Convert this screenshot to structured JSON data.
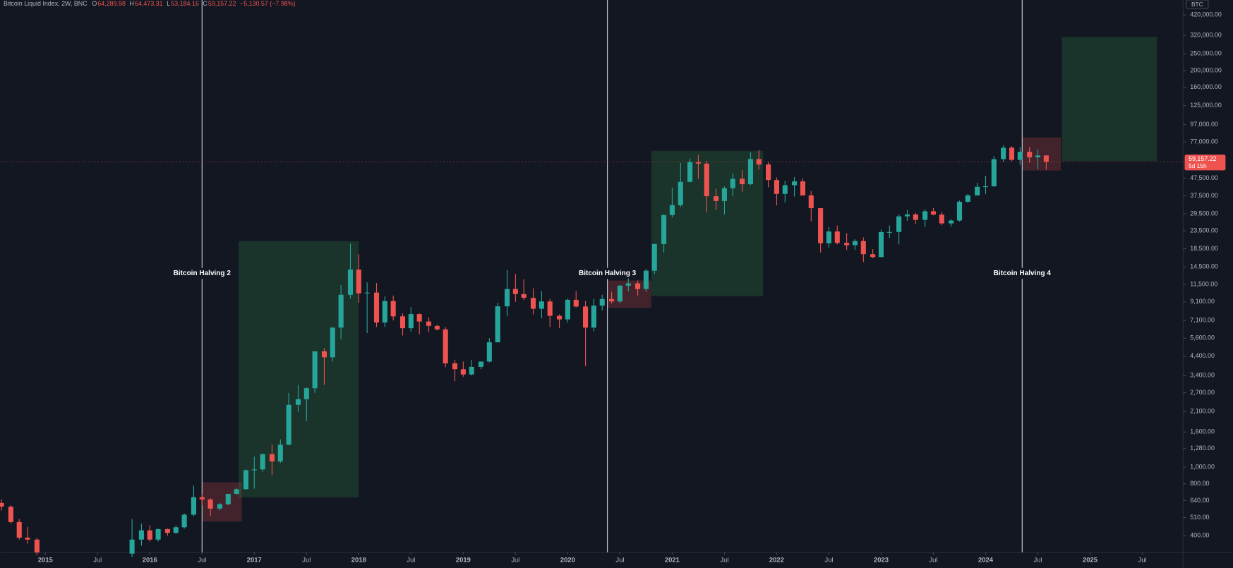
{
  "chart_data": {
    "type": "candlestick",
    "symbol": "BTC",
    "header": {
      "title": "Bitcoin Liquid Index, 2W, BNC",
      "fields": [
        {
          "key": "O",
          "value": "64,289.98"
        },
        {
          "key": "H",
          "value": "64,473.31"
        },
        {
          "key": "L",
          "value": "53,184.16"
        },
        {
          "key": "C",
          "value": "59,157.22"
        }
      ],
      "change": "−5,130.57 (−7.98%)"
    },
    "log_scale": true,
    "grid": false,
    "up_color": "#26a69a",
    "down_color": "#ef5350",
    "xlim": [
      2014.57,
      2025.89
    ],
    "ylim": [
      331,
      513000
    ],
    "xticks": [
      {
        "value": 2015,
        "label": "2015"
      },
      {
        "value": 2015.5,
        "label": "Jul"
      },
      {
        "value": 2016,
        "label": "2016"
      },
      {
        "value": 2016.5,
        "label": "Jul"
      },
      {
        "value": 2017,
        "label": "2017"
      },
      {
        "value": 2017.5,
        "label": "Jul"
      },
      {
        "value": 2018,
        "label": "2018"
      },
      {
        "value": 2018.5,
        "label": "Jul"
      },
      {
        "value": 2019,
        "label": "2019"
      },
      {
        "value": 2019.5,
        "label": "Jul"
      },
      {
        "value": 2020,
        "label": "2020"
      },
      {
        "value": 2020.5,
        "label": "Jul"
      },
      {
        "value": 2021,
        "label": "2021"
      },
      {
        "value": 2021.5,
        "label": "Jul"
      },
      {
        "value": 2022,
        "label": "2022"
      },
      {
        "value": 2022.5,
        "label": "Jul"
      },
      {
        "value": 2023,
        "label": "2023"
      },
      {
        "value": 2023.5,
        "label": "Jul"
      },
      {
        "value": 2024,
        "label": "2024"
      },
      {
        "value": 2024.5,
        "label": "Jul"
      },
      {
        "value": 2025,
        "label": "2025"
      },
      {
        "value": 2025.5,
        "label": "Jul"
      }
    ],
    "yticks": [
      {
        "value": 420000,
        "label": "420,000.00"
      },
      {
        "value": 320000,
        "label": "320,000.00"
      },
      {
        "value": 250000,
        "label": "250,000.00"
      },
      {
        "value": 200000,
        "label": "200,000.00"
      },
      {
        "value": 160000,
        "label": "160,000.00"
      },
      {
        "value": 125000,
        "label": "125,000.00"
      },
      {
        "value": 97000,
        "label": "97,000.00"
      },
      {
        "value": 77000,
        "label": "77,000.00"
      },
      {
        "value": 47500,
        "label": "47,500.00"
      },
      {
        "value": 37500,
        "label": "37,500.00"
      },
      {
        "value": 29500,
        "label": "29,500.00"
      },
      {
        "value": 23500,
        "label": "23,500.00"
      },
      {
        "value": 18500,
        "label": "18,500.00"
      },
      {
        "value": 14500,
        "label": "14,500.00"
      },
      {
        "value": 11500,
        "label": "11,500.00"
      },
      {
        "value": 9100,
        "label": "9,100.00"
      },
      {
        "value": 7100,
        "label": "7,100.00"
      },
      {
        "value": 5600,
        "label": "5,600.00"
      },
      {
        "value": 4400,
        "label": "4,400.00"
      },
      {
        "value": 3400,
        "label": "3,400.00"
      },
      {
        "value": 2700,
        "label": "2,700.00"
      },
      {
        "value": 2100,
        "label": "2,100.00"
      },
      {
        "value": 1600,
        "label": "1,600.00"
      },
      {
        "value": 1280,
        "label": "1,280.00"
      },
      {
        "value": 1000,
        "label": "1,000.00"
      },
      {
        "value": 800,
        "label": "800.00"
      },
      {
        "value": 640,
        "label": "640.00"
      },
      {
        "value": 510,
        "label": "510.00"
      },
      {
        "value": 400,
        "label": "400.00"
      }
    ],
    "last_price": {
      "value": 59157.22,
      "label": "59,157.22",
      "countdown": "5d 15h"
    },
    "x": [
      2014.58,
      2014.67,
      2014.75,
      2014.83,
      2014.92,
      2015.83,
      2015.92,
      2016.0,
      2016.08,
      2016.17,
      2016.25,
      2016.33,
      2016.42,
      2016.5,
      2016.58,
      2016.67,
      2016.75,
      2016.83,
      2016.92,
      2017.0,
      2017.08,
      2017.17,
      2017.25,
      2017.33,
      2017.42,
      2017.5,
      2017.58,
      2017.67,
      2017.75,
      2017.83,
      2017.92,
      2018.0,
      2018.08,
      2018.17,
      2018.25,
      2018.33,
      2018.42,
      2018.5,
      2018.58,
      2018.67,
      2018.75,
      2018.83,
      2018.92,
      2019.0,
      2019.08,
      2019.17,
      2019.25,
      2019.33,
      2019.42,
      2019.5,
      2019.58,
      2019.67,
      2019.75,
      2019.83,
      2019.92,
      2020.0,
      2020.08,
      2020.17,
      2020.25,
      2020.33,
      2020.42,
      2020.5,
      2020.58,
      2020.67,
      2020.75,
      2020.83,
      2020.92,
      2021.0,
      2021.08,
      2021.17,
      2021.25,
      2021.33,
      2021.42,
      2021.5,
      2021.58,
      2021.67,
      2021.75,
      2021.83,
      2021.92,
      2022.0,
      2022.08,
      2022.17,
      2022.25,
      2022.33,
      2022.42,
      2022.5,
      2022.58,
      2022.67,
      2022.75,
      2022.83,
      2022.92,
      2023.0,
      2023.08,
      2023.17,
      2023.25,
      2023.33,
      2023.42,
      2023.5,
      2023.58,
      2023.67,
      2023.75,
      2023.83,
      2023.92,
      2024.0,
      2024.08,
      2024.17,
      2024.25,
      2024.33,
      2024.42,
      2024.5,
      2024.58
    ],
    "open": [
      620,
      590,
      480,
      390,
      380,
      315,
      380,
      430,
      380,
      437,
      416,
      448,
      530,
      670,
      650,
      575,
      610,
      700,
      745,
      960,
      970,
      1190,
      1080,
      1350,
      2300,
      2480,
      2870,
      4700,
      4340,
      6450,
      10000,
      14000,
      10200,
      10300,
      6900,
      9200,
      7500,
      6400,
      7730,
      7000,
      6600,
      6300,
      4000,
      3700,
      3450,
      3820,
      4100,
      5300,
      8570,
      10800,
      10100,
      9600,
      8300,
      9150,
      7550,
      7200,
      9350,
      8550,
      6450,
      8650,
      9450,
      9150,
      11300,
      11650,
      10800,
      13800,
      19700,
      29000,
      33100,
      45200,
      58800,
      57700,
      37300,
      35000,
      41500,
      47100,
      43800,
      61300,
      57000,
      46300,
      38500,
      43200,
      45500,
      37700,
      31800,
      19900,
      23300,
      20000,
      19400,
      20500,
      17200,
      16550,
      23100,
      23150,
      28500,
      29250,
      27200,
      30500,
      29200,
      25950,
      26970,
      34650,
      37720,
      42300,
      42600,
      61200,
      71300,
      60600,
      67500,
      62700,
      64289.98
    ],
    "high": [
      650,
      600,
      500,
      450,
      390,
      500,
      470,
      460,
      440,
      440,
      460,
      540,
      780,
      700,
      660,
      620,
      640,
      760,
      970,
      1150,
      1200,
      1350,
      1450,
      2700,
      3000,
      2900,
      4700,
      4900,
      6500,
      11400,
      19800,
      17200,
      11800,
      11700,
      9800,
      9900,
      7800,
      8500,
      7800,
      7400,
      6700,
      6500,
      4200,
      4100,
      4200,
      4100,
      5600,
      9000,
      13900,
      13200,
      12300,
      10900,
      10500,
      9500,
      7700,
      9500,
      10500,
      9200,
      9450,
      10000,
      10400,
      11400,
      12450,
      12100,
      14100,
      19800,
      29300,
      41900,
      58300,
      61700,
      64800,
      59600,
      41300,
      42500,
      50500,
      52900,
      67000,
      69000,
      59100,
      47900,
      45800,
      48200,
      47400,
      40000,
      31900,
      24700,
      25200,
      22800,
      21000,
      21500,
      18400,
      23900,
      25250,
      29200,
      31000,
      29800,
      31400,
      31800,
      30300,
      27500,
      35200,
      38500,
      44700,
      48900,
      63900,
      73800,
      72800,
      71900,
      71900,
      70000,
      64473.31
    ],
    "low": [
      560,
      470,
      380,
      360,
      310,
      300,
      350,
      370,
      370,
      400,
      410,
      440,
      520,
      600,
      520,
      560,
      600,
      690,
      740,
      750,
      940,
      900,
      1060,
      1340,
      2100,
      1850,
      2700,
      3000,
      4100,
      5500,
      9500,
      9000,
      6000,
      6500,
      6500,
      7100,
      5800,
      6100,
      5900,
      6100,
      6200,
      3800,
      3150,
      3350,
      3400,
      3700,
      4050,
      5300,
      7500,
      9100,
      9300,
      7700,
      7300,
      6500,
      6400,
      6900,
      8450,
      3850,
      6150,
      8100,
      8900,
      8950,
      10500,
      9900,
      10400,
      13200,
      17600,
      28100,
      32300,
      44900,
      47000,
      30000,
      31000,
      29300,
      37300,
      39600,
      43300,
      53300,
      42000,
      33000,
      34300,
      37200,
      37600,
      26700,
      17600,
      18800,
      19600,
      18200,
      18200,
      15500,
      16300,
      16500,
      21400,
      19600,
      26900,
      25800,
      24800,
      28900,
      25300,
      24900,
      26600,
      34100,
      37600,
      38500,
      42300,
      59000,
      59600,
      56500,
      58400,
      53500,
      53184.16
    ],
    "close": [
      590,
      480,
      390,
      380,
      320,
      380,
      430,
      380,
      437,
      416,
      448,
      530,
      670,
      650,
      575,
      610,
      700,
      745,
      960,
      970,
      1190,
      1080,
      1350,
      2300,
      2480,
      2870,
      4700,
      4340,
      6450,
      10000,
      14000,
      10200,
      10300,
      6900,
      9200,
      7500,
      6400,
      7730,
      7000,
      6600,
      6300,
      4000,
      3700,
      3450,
      3820,
      4100,
      5300,
      8570,
      10800,
      10100,
      9600,
      8300,
      9150,
      7550,
      7200,
      9350,
      8550,
      6450,
      8650,
      9450,
      9150,
      11300,
      11650,
      10800,
      13800,
      19700,
      29000,
      33100,
      45200,
      58800,
      57700,
      37300,
      35000,
      41500,
      47100,
      43800,
      61300,
      57000,
      46300,
      38500,
      43200,
      45500,
      37700,
      31800,
      19900,
      23300,
      20000,
      19400,
      20500,
      17200,
      16550,
      23100,
      23150,
      28500,
      29250,
      27200,
      30500,
      29200,
      25950,
      26970,
      34650,
      37720,
      42300,
      42600,
      61200,
      71300,
      60600,
      67500,
      62700,
      64289.98,
      59157.22
    ],
    "zones": [
      {
        "x0": 2016.5,
        "x1": 2016.88,
        "y0": 483,
        "y1": 817,
        "color": "rgba(239,83,80,0.22)"
      },
      {
        "x0": 2016.85,
        "x1": 2018.0,
        "y0": 668,
        "y1": 20460,
        "color": "rgba(46,125,70,0.28)"
      },
      {
        "x0": 2020.38,
        "x1": 2020.8,
        "y0": 8390,
        "y1": 12100,
        "color": "rgba(239,83,80,0.22)"
      },
      {
        "x0": 2020.8,
        "x1": 2021.87,
        "y0": 9820,
        "y1": 68400,
        "color": "rgba(46,125,70,0.28)"
      },
      {
        "x0": 2024.35,
        "x1": 2024.72,
        "y0": 52600,
        "y1": 81800,
        "color": "rgba(239,83,80,0.22)"
      },
      {
        "x0": 2024.73,
        "x1": 2025.64,
        "y0": 59700,
        "y1": 313000,
        "color": "rgba(46,125,70,0.28)"
      }
    ],
    "events": [
      {
        "x": 2016.5,
        "label": "Bitcoin Halving 2"
      },
      {
        "x": 2020.38,
        "label": "Bitcoin Halving 3"
      },
      {
        "x": 2024.35,
        "label": "Bitcoin Halving 4"
      }
    ]
  }
}
